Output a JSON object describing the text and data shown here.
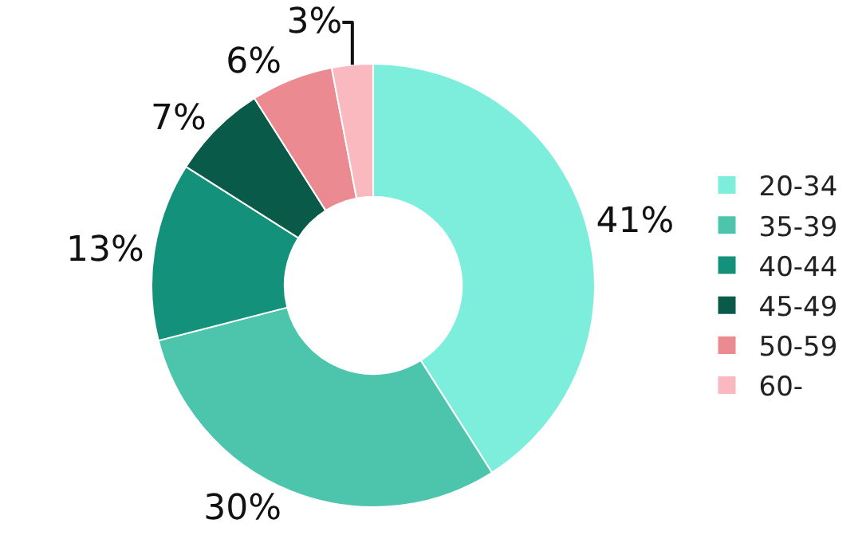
{
  "chart_data": {
    "type": "donut",
    "categories": [
      "20-34",
      "35-39",
      "40-44",
      "45-49",
      "50-59",
      "60-"
    ],
    "values": [
      41,
      30,
      13,
      7,
      6,
      3
    ],
    "value_labels": [
      "41%",
      "30%",
      "13%",
      "7%",
      "6%",
      "3%"
    ],
    "colors": [
      "#7eeedc",
      "#4cc5ac",
      "#13917a",
      "#0a5a4a",
      "#ec8a92",
      "#f9b9bf"
    ],
    "legend": "right"
  }
}
